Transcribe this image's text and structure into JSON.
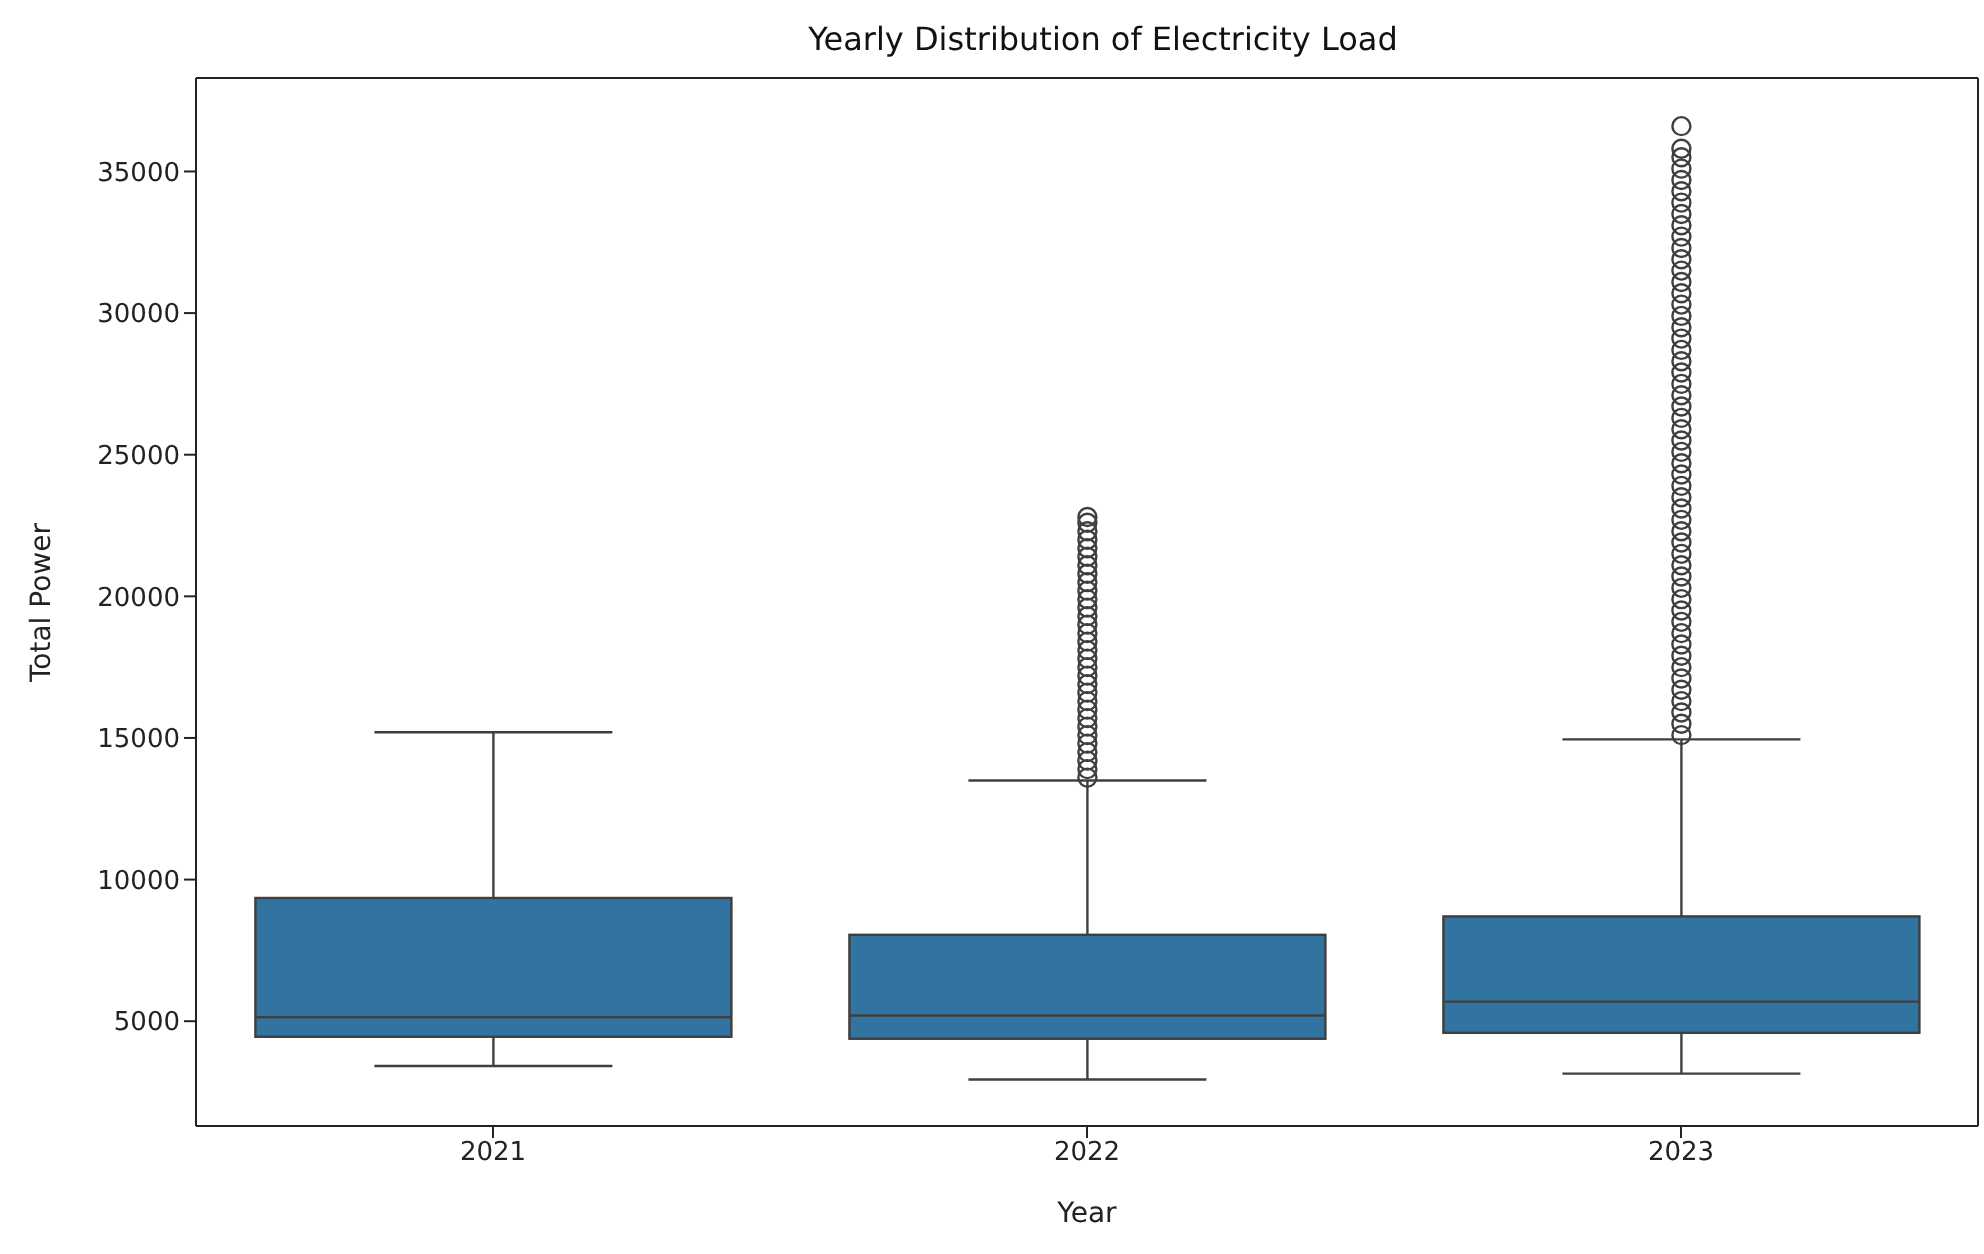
{
  "chart_data": {
    "type": "box",
    "title": "Yearly Distribution of Electricity Load",
    "xlabel": "Year",
    "ylabel": "Total Power",
    "categories": [
      "2021",
      "2022",
      "2023"
    ],
    "color": "#3274a1",
    "boxes": [
      {
        "low": 3420,
        "q1": 4450,
        "median": 5140,
        "q3": 9350,
        "high": 15200
      },
      {
        "low": 2940,
        "q1": 4380,
        "median": 5200,
        "q3": 8050,
        "high": 13500,
        "outliers": [
          13600,
          13900,
          14200,
          14500,
          14800,
          15100,
          15400,
          15700,
          16000,
          16300,
          16600,
          16900,
          17200,
          17500,
          17800,
          18100,
          18400,
          18700,
          19000,
          19300,
          19600,
          19900,
          20200,
          20500,
          20800,
          21100,
          21400,
          21700,
          22000,
          22300,
          22600,
          22800
        ]
      },
      {
        "low": 3150,
        "q1": 4590,
        "median": 5690,
        "q3": 8700,
        "high": 14950,
        "outliers": [
          15100,
          15500,
          15900,
          16300,
          16700,
          17100,
          17500,
          17900,
          18300,
          18700,
          19100,
          19500,
          19900,
          20300,
          20700,
          21100,
          21500,
          21900,
          22300,
          22700,
          23100,
          23500,
          23900,
          24300,
          24700,
          25100,
          25500,
          25900,
          26300,
          26700,
          27100,
          27500,
          27900,
          28300,
          28700,
          29100,
          29500,
          29900,
          30300,
          30700,
          31100,
          31500,
          31900,
          32300,
          32700,
          33100,
          33500,
          33900,
          34300,
          34700,
          35100,
          35500,
          35800,
          36600
        ]
      }
    ],
    "ylim": [
      1300,
      38300
    ],
    "yticks": [
      5000,
      10000,
      15000,
      20000,
      25000,
      30000,
      35000
    ]
  }
}
